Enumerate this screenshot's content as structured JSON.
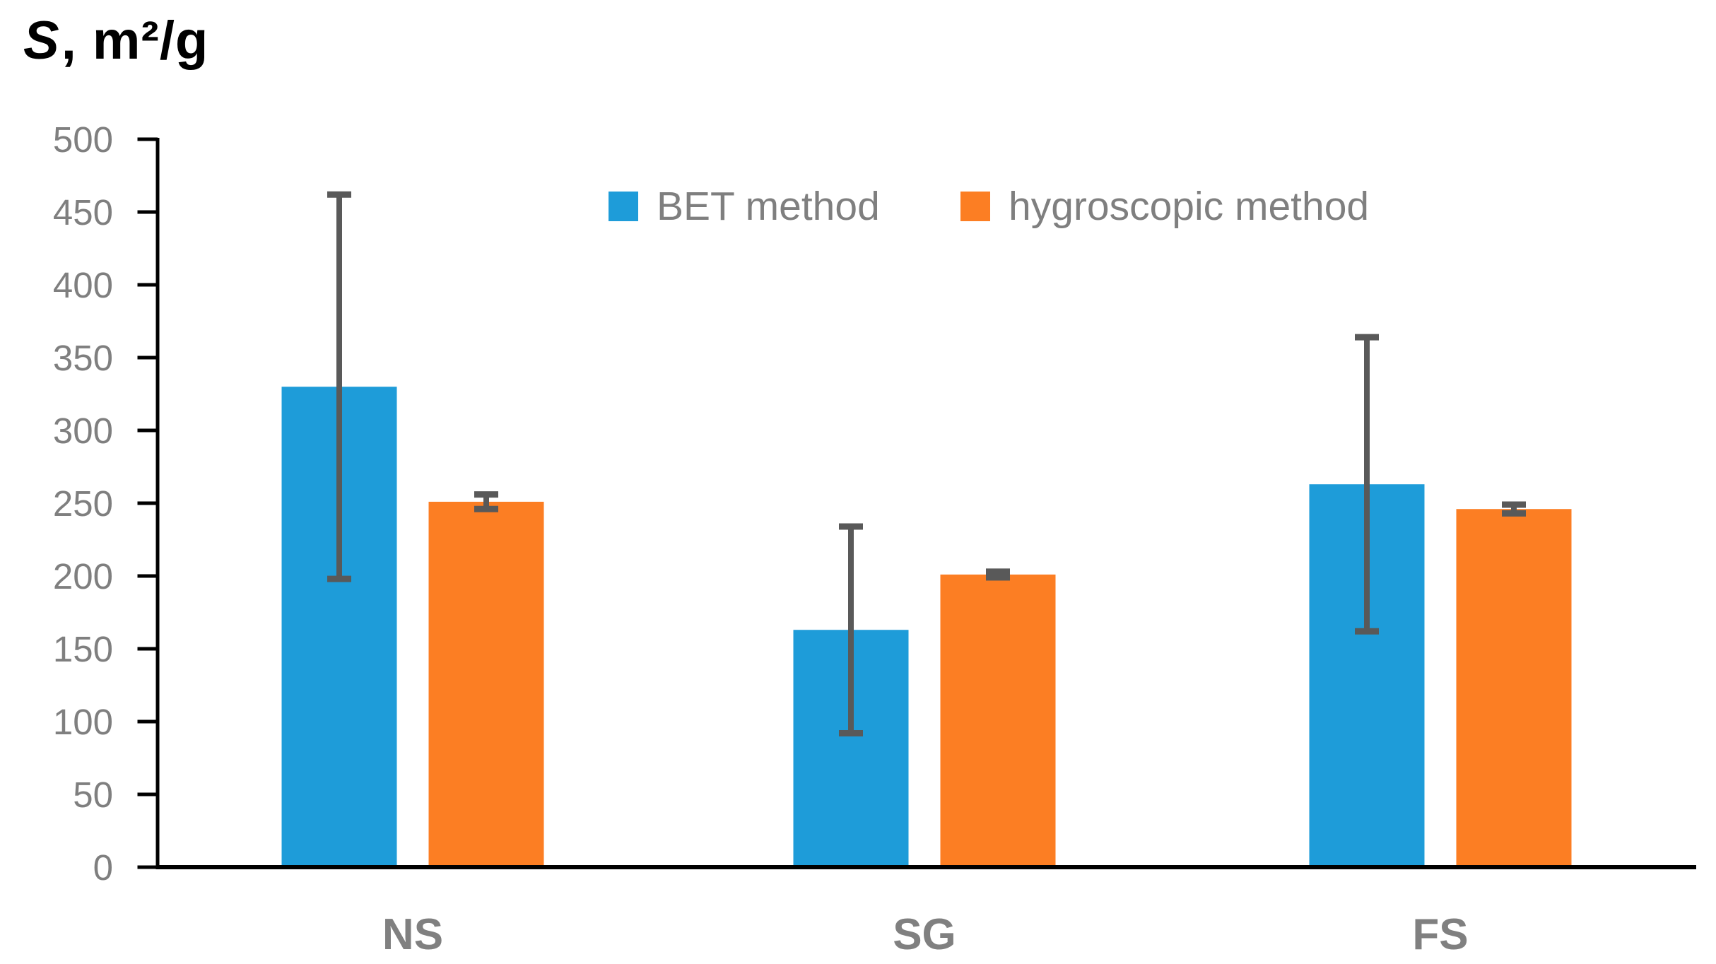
{
  "title": {
    "italic": "S",
    "rest": ", m²/g"
  },
  "legend": [
    {
      "label": "BET method",
      "color": "#1E9CD9"
    },
    {
      "label": "hygroscopic method",
      "color": "#FC7E23"
    }
  ],
  "chart_data": {
    "type": "bar",
    "title": "S, m²/g",
    "ylabel": "S, m²/g",
    "xlabel": "",
    "categories": [
      "NS",
      "SG",
      "FS"
    ],
    "series": [
      {
        "name": "BET method",
        "color": "#1E9CD9",
        "values": [
          330,
          163,
          263
        ],
        "errors": [
          132,
          71,
          101
        ]
      },
      {
        "name": "hygroscopic method",
        "color": "#FC7E23",
        "values": [
          251,
          201,
          246
        ],
        "errors": [
          5,
          2,
          3
        ]
      }
    ],
    "ylim": [
      0,
      500
    ],
    "ytick_step": 50,
    "ytick_labels": [
      "0",
      "50",
      "100",
      "150",
      "200",
      "250",
      "300",
      "350",
      "400",
      "450",
      "500"
    ],
    "grid": false,
    "legend_position": "top-center",
    "error_bar_color": "#595959",
    "axis_color": "#000000",
    "tick_label_color": "#7F7F7F",
    "category_label_color": "#808080",
    "background_color": "#FFFFFF"
  }
}
